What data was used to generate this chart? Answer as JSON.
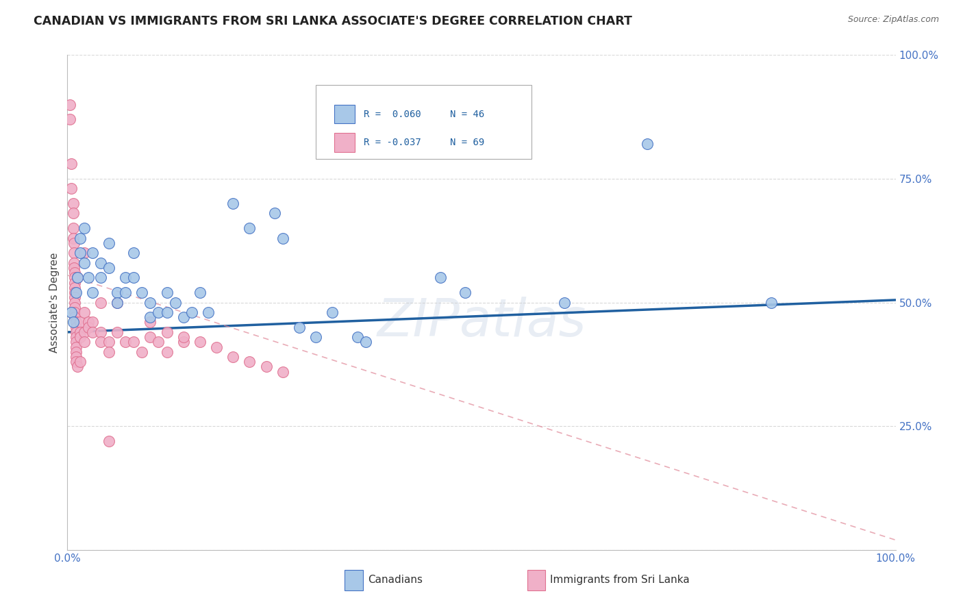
{
  "title": "CANADIAN VS IMMIGRANTS FROM SRI LANKA ASSOCIATE'S DEGREE CORRELATION CHART",
  "source": "Source: ZipAtlas.com",
  "ylabel": "Associate's Degree",
  "watermark": "ZIPatlas",
  "legend_blue_r": "R =  0.060",
  "legend_blue_n": "N = 46",
  "legend_pink_r": "R = -0.037",
  "legend_pink_n": "N = 69",
  "blue_scatter": [
    [
      0.005,
      0.48
    ],
    [
      0.007,
      0.46
    ],
    [
      0.01,
      0.52
    ],
    [
      0.012,
      0.55
    ],
    [
      0.015,
      0.6
    ],
    [
      0.015,
      0.63
    ],
    [
      0.02,
      0.65
    ],
    [
      0.02,
      0.58
    ],
    [
      0.025,
      0.55
    ],
    [
      0.03,
      0.6
    ],
    [
      0.03,
      0.52
    ],
    [
      0.04,
      0.58
    ],
    [
      0.04,
      0.55
    ],
    [
      0.05,
      0.62
    ],
    [
      0.05,
      0.57
    ],
    [
      0.06,
      0.52
    ],
    [
      0.06,
      0.5
    ],
    [
      0.07,
      0.55
    ],
    [
      0.07,
      0.52
    ],
    [
      0.08,
      0.6
    ],
    [
      0.08,
      0.55
    ],
    [
      0.09,
      0.52
    ],
    [
      0.1,
      0.5
    ],
    [
      0.1,
      0.47
    ],
    [
      0.11,
      0.48
    ],
    [
      0.12,
      0.52
    ],
    [
      0.12,
      0.48
    ],
    [
      0.13,
      0.5
    ],
    [
      0.14,
      0.47
    ],
    [
      0.15,
      0.48
    ],
    [
      0.16,
      0.52
    ],
    [
      0.17,
      0.48
    ],
    [
      0.2,
      0.7
    ],
    [
      0.22,
      0.65
    ],
    [
      0.25,
      0.68
    ],
    [
      0.26,
      0.63
    ],
    [
      0.28,
      0.45
    ],
    [
      0.3,
      0.43
    ],
    [
      0.32,
      0.48
    ],
    [
      0.35,
      0.43
    ],
    [
      0.36,
      0.42
    ],
    [
      0.45,
      0.55
    ],
    [
      0.48,
      0.52
    ],
    [
      0.6,
      0.5
    ],
    [
      0.7,
      0.82
    ],
    [
      0.85,
      0.5
    ]
  ],
  "pink_scatter": [
    [
      0.003,
      0.9
    ],
    [
      0.003,
      0.87
    ],
    [
      0.005,
      0.78
    ],
    [
      0.005,
      0.73
    ],
    [
      0.007,
      0.7
    ],
    [
      0.007,
      0.68
    ],
    [
      0.007,
      0.65
    ],
    [
      0.007,
      0.63
    ],
    [
      0.008,
      0.62
    ],
    [
      0.008,
      0.6
    ],
    [
      0.008,
      0.58
    ],
    [
      0.008,
      0.57
    ],
    [
      0.009,
      0.56
    ],
    [
      0.009,
      0.55
    ],
    [
      0.009,
      0.54
    ],
    [
      0.009,
      0.53
    ],
    [
      0.009,
      0.52
    ],
    [
      0.009,
      0.51
    ],
    [
      0.009,
      0.5
    ],
    [
      0.009,
      0.49
    ],
    [
      0.009,
      0.48
    ],
    [
      0.009,
      0.47
    ],
    [
      0.01,
      0.46
    ],
    [
      0.01,
      0.45
    ],
    [
      0.01,
      0.44
    ],
    [
      0.01,
      0.43
    ],
    [
      0.01,
      0.42
    ],
    [
      0.01,
      0.41
    ],
    [
      0.01,
      0.4
    ],
    [
      0.01,
      0.39
    ],
    [
      0.01,
      0.38
    ],
    [
      0.012,
      0.37
    ],
    [
      0.012,
      0.55
    ],
    [
      0.015,
      0.46
    ],
    [
      0.015,
      0.44
    ],
    [
      0.015,
      0.43
    ],
    [
      0.02,
      0.6
    ],
    [
      0.02,
      0.48
    ],
    [
      0.02,
      0.44
    ],
    [
      0.02,
      0.42
    ],
    [
      0.025,
      0.46
    ],
    [
      0.025,
      0.45
    ],
    [
      0.03,
      0.46
    ],
    [
      0.03,
      0.44
    ],
    [
      0.04,
      0.5
    ],
    [
      0.04,
      0.44
    ],
    [
      0.04,
      0.42
    ],
    [
      0.05,
      0.42
    ],
    [
      0.05,
      0.4
    ],
    [
      0.06,
      0.5
    ],
    [
      0.06,
      0.44
    ],
    [
      0.07,
      0.42
    ],
    [
      0.08,
      0.42
    ],
    [
      0.09,
      0.4
    ],
    [
      0.1,
      0.43
    ],
    [
      0.11,
      0.42
    ],
    [
      0.12,
      0.4
    ],
    [
      0.14,
      0.42
    ],
    [
      0.015,
      0.38
    ],
    [
      0.05,
      0.22
    ],
    [
      0.1,
      0.46
    ],
    [
      0.12,
      0.44
    ],
    [
      0.14,
      0.43
    ],
    [
      0.16,
      0.42
    ],
    [
      0.18,
      0.41
    ],
    [
      0.2,
      0.39
    ],
    [
      0.22,
      0.38
    ],
    [
      0.24,
      0.37
    ],
    [
      0.26,
      0.36
    ]
  ],
  "blue_color": "#a8c8e8",
  "pink_color": "#f0b0c8",
  "blue_edge_color": "#4472c4",
  "pink_edge_color": "#e07090",
  "blue_line_color": "#2060a0",
  "pink_line_color": "#e08898",
  "grid_color": "#d0d0d0",
  "ytick_color": "#4472c4",
  "xtick_color": "#4472c4",
  "title_color": "#222222",
  "source_color": "#666666",
  "xlim": [
    0.0,
    1.0
  ],
  "ylim": [
    0.0,
    1.0
  ],
  "blue_trend_x": [
    0.0,
    1.0
  ],
  "blue_trend_y": [
    0.44,
    0.505
  ],
  "pink_trend_x": [
    0.0,
    1.0
  ],
  "pink_trend_y": [
    0.555,
    0.02
  ]
}
